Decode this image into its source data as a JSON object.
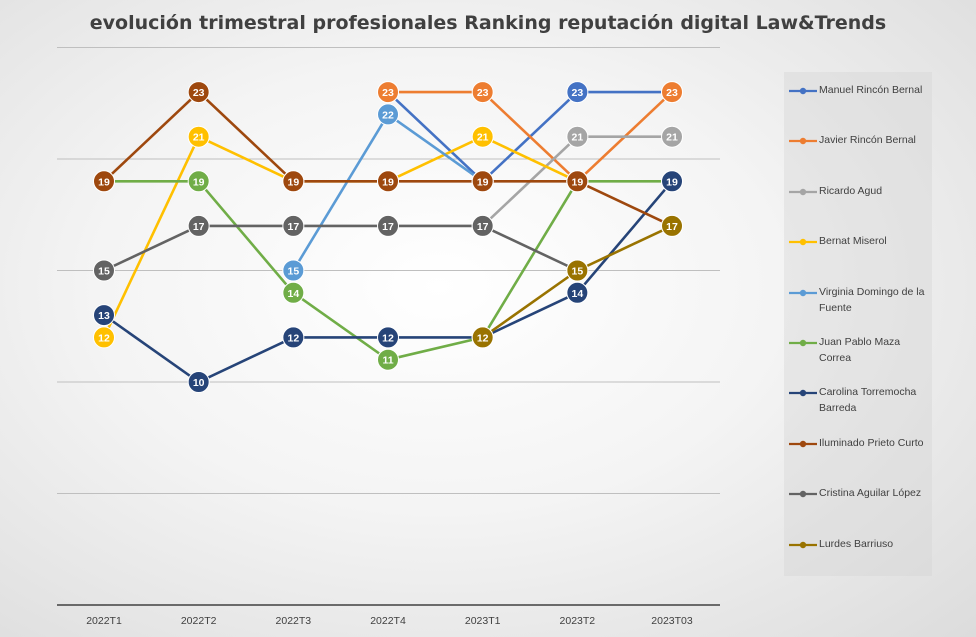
{
  "chart_data": {
    "type": "line",
    "title": "evolución trimestral profesionales Ranking reputación digital Law&Trends",
    "xlabel": "",
    "ylabel": "",
    "categories": [
      "2022T1",
      "2022T2",
      "2022T3",
      "2022T4",
      "2023T1",
      "2023T2",
      "2023T03"
    ],
    "ylim": [
      0,
      25
    ],
    "grid": "horizontal",
    "legend_position": "right",
    "series": [
      {
        "name": "Manuel Rincón Bernal",
        "color": "#4472C4",
        "values": [
          null,
          null,
          null,
          23,
          19,
          23,
          23
        ]
      },
      {
        "name": "Javier  Rincón Bernal",
        "color": "#ED7D31",
        "values": [
          null,
          null,
          null,
          23,
          23,
          19,
          23
        ]
      },
      {
        "name": "Ricardo Agud",
        "color": "#A5A5A5",
        "values": [
          null,
          null,
          null,
          null,
          17,
          21,
          21
        ]
      },
      {
        "name": "Bernat Miserol",
        "color": "#FFC000",
        "values": [
          12,
          21,
          19,
          19,
          21,
          19,
          null
        ]
      },
      {
        "name": "Virginia Domingo de la Fuente",
        "color": "#5B9BD5",
        "values": [
          null,
          null,
          15,
          22,
          19,
          null,
          null
        ]
      },
      {
        "name": "Juan Pablo Maza Correa",
        "color": "#70AD47",
        "values": [
          19,
          19,
          14,
          11,
          12,
          19,
          19
        ]
      },
      {
        "name": "Carolina  Torremocha Barreda",
        "color": "#264478",
        "values": [
          13,
          10,
          12,
          12,
          12,
          14,
          19
        ]
      },
      {
        "name": "Iluminado  Prieto Curto",
        "color": "#9E480E",
        "values": [
          19,
          23,
          19,
          19,
          19,
          19,
          17
        ]
      },
      {
        "name": "Cristina Aguilar López",
        "color": "#636363",
        "values": [
          15,
          17,
          17,
          17,
          17,
          15,
          null
        ]
      },
      {
        "name": "Lurdes Barriuso",
        "color": "#997300",
        "values": [
          null,
          null,
          null,
          null,
          12,
          15,
          17
        ]
      }
    ]
  }
}
